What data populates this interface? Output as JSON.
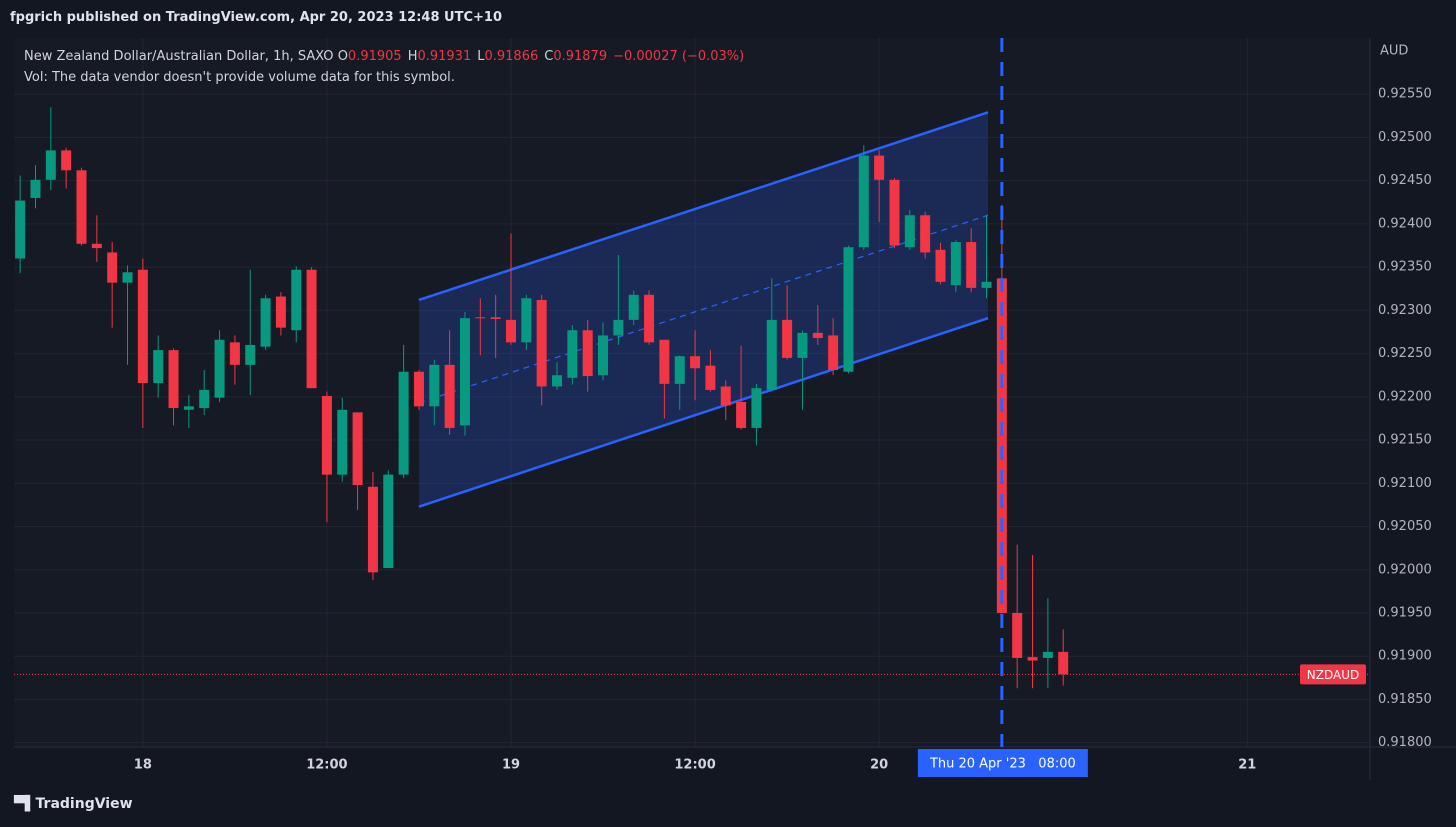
{
  "header": {
    "published": "fpgrich published on TradingView.com, Apr 20, 2023 12:48 UTC+10"
  },
  "footer": {
    "brand": "TradingView"
  },
  "chart_data": {
    "type": "candlestick",
    "symbol_info": "New Zealand Dollar/Australian Dollar, 1h, SAXO",
    "ohlc_legend": [
      {
        "label": "O",
        "value": 0.91905
      },
      {
        "label": "H",
        "value": 0.91931
      },
      {
        "label": "L",
        "value": 0.91866
      },
      {
        "label": "C",
        "value": 0.91879
      }
    ],
    "change": "−0.00027 (−0.03%)",
    "volume_note": "Vol: The data vendor doesn't provide volume data for this symbol.",
    "currency": "AUD",
    "x": [
      0,
      1,
      2,
      3,
      4,
      5,
      6,
      7,
      8,
      9,
      10,
      11,
      12,
      13,
      14,
      15,
      16,
      17,
      18,
      19,
      20,
      21,
      22,
      23,
      24,
      25,
      26,
      27,
      28,
      29,
      30,
      31,
      32,
      33,
      34,
      35,
      36,
      37,
      38,
      39,
      40,
      41,
      42,
      43,
      44,
      45,
      46,
      47,
      48,
      49,
      50,
      51,
      52,
      53,
      54,
      55,
      56,
      57,
      58,
      59,
      60,
      61,
      62,
      63,
      64,
      65,
      66,
      67,
      68
    ],
    "open": [
      0.9236,
      0.9243,
      0.92451,
      0.92485,
      0.92462,
      0.92377,
      0.92367,
      0.92332,
      0.92347,
      0.92216,
      0.92254,
      0.92185,
      0.92187,
      0.92199,
      0.92263,
      0.92237,
      0.92258,
      0.92316,
      0.92277,
      0.92347,
      0.92201,
      0.9211,
      0.92182,
      0.92096,
      0.92002,
      0.9211,
      0.92229,
      0.92189,
      0.92237,
      0.92167,
      0.92292,
      0.92292,
      0.92289,
      0.92263,
      0.92312,
      0.92212,
      0.92222,
      0.92277,
      0.92225,
      0.92271,
      0.92289,
      0.92318,
      0.92266,
      0.92215,
      0.92247,
      0.92236,
      0.92212,
      0.92194,
      0.92164,
      0.92208,
      0.92289,
      0.92245,
      0.92274,
      0.92271,
      0.92229,
      0.92373,
      0.92479,
      0.92451,
      0.92373,
      0.9241,
      0.9237,
      0.92329,
      0.92379,
      0.92326,
      0.92337,
      0.9195,
      0.91899,
      0.91898,
      0.91905
    ],
    "high": [
      0.92456,
      0.92468,
      0.92535,
      0.92488,
      0.92465,
      0.9241,
      0.92379,
      0.92352,
      0.9236,
      0.92271,
      0.92256,
      0.92202,
      0.92231,
      0.92277,
      0.92271,
      0.92347,
      0.92318,
      0.92321,
      0.92351,
      0.9235,
      0.92206,
      0.92199,
      0.92182,
      0.92113,
      0.92115,
      0.9226,
      0.92231,
      0.92243,
      0.92277,
      0.92298,
      0.92314,
      0.92318,
      0.92389,
      0.92318,
      0.92318,
      0.9224,
      0.92283,
      0.92289,
      0.92286,
      0.92364,
      0.92323,
      0.92323,
      0.92266,
      0.92248,
      0.92277,
      0.92254,
      0.92219,
      0.92259,
      0.92215,
      0.92337,
      0.92329,
      0.92277,
      0.92306,
      0.92291,
      0.92375,
      0.92491,
      0.92485,
      0.92453,
      0.92416,
      0.92414,
      0.92378,
      0.92381,
      0.92395,
      0.9241,
      0.92422,
      0.92029,
      0.92017,
      0.91967,
      0.91931
    ],
    "low": [
      0.92343,
      0.92418,
      0.92439,
      0.92441,
      0.92375,
      0.92356,
      0.9228,
      0.92237,
      0.92164,
      0.92199,
      0.92167,
      0.92164,
      0.92179,
      0.92194,
      0.92214,
      0.92202,
      0.92254,
      0.92271,
      0.92263,
      0.9221,
      0.92055,
      0.92102,
      0.92069,
      0.91988,
      0.92002,
      0.92106,
      0.92185,
      0.92167,
      0.92156,
      0.92155,
      0.92248,
      0.92245,
      0.9226,
      0.92254,
      0.9219,
      0.92208,
      0.92214,
      0.92206,
      0.92219,
      0.9226,
      0.92283,
      0.9226,
      0.92175,
      0.92185,
      0.92196,
      0.92206,
      0.92173,
      0.92162,
      0.92144,
      0.92206,
      0.92243,
      0.92185,
      0.9226,
      0.92225,
      0.92227,
      0.9237,
      0.92402,
      0.92372,
      0.9237,
      0.9236,
      0.9233,
      0.92321,
      0.92321,
      0.92314,
      0.9195,
      0.91863,
      0.91863,
      0.91863,
      0.91866
    ],
    "close": [
      0.92427,
      0.92451,
      0.92485,
      0.92462,
      0.92377,
      0.92372,
      0.92332,
      0.92344,
      0.92216,
      0.92254,
      0.92187,
      0.92189,
      0.92208,
      0.92266,
      0.92237,
      0.9226,
      0.92314,
      0.9228,
      0.92347,
      0.9221,
      0.9211,
      0.92185,
      0.92098,
      0.91997,
      0.9211,
      0.92229,
      0.92189,
      0.92237,
      0.92164,
      0.92291,
      0.92291,
      0.9229,
      0.92263,
      0.92314,
      0.92212,
      0.92225,
      0.92277,
      0.92224,
      0.92271,
      0.92289,
      0.92318,
      0.92263,
      0.92215,
      0.92247,
      0.92233,
      0.92208,
      0.9219,
      0.92164,
      0.9221,
      0.92289,
      0.92245,
      0.92274,
      0.92268,
      0.92231,
      0.92373,
      0.92479,
      0.92451,
      0.92375,
      0.9241,
      0.92367,
      0.92333,
      0.92379,
      0.92326,
      0.92333,
      0.9195,
      0.91898,
      0.91895,
      0.91905,
      0.91879
    ],
    "up_color": "#089981",
    "down_color": "#f23645",
    "xlim": [
      -0.4,
      88.0
    ],
    "ylim": [
      0.91795,
      0.92615
    ],
    "xticks": [
      {
        "value": 8,
        "label": "18"
      },
      {
        "value": 20,
        "label": "12:00"
      },
      {
        "value": 32,
        "label": "19"
      },
      {
        "value": 44,
        "label": "12:00"
      },
      {
        "value": 56,
        "label": "20"
      },
      {
        "value": 80,
        "label": "21"
      }
    ],
    "yticks": [
      {
        "value": 0.9255,
        "label": "0.92550"
      },
      {
        "value": 0.925,
        "label": "0.92500"
      },
      {
        "value": 0.9245,
        "label": "0.92450"
      },
      {
        "value": 0.924,
        "label": "0.92400"
      },
      {
        "value": 0.9235,
        "label": "0.92350"
      },
      {
        "value": 0.923,
        "label": "0.92300"
      },
      {
        "value": 0.9225,
        "label": "0.92250"
      },
      {
        "value": 0.922,
        "label": "0.92200"
      },
      {
        "value": 0.9215,
        "label": "0.92150"
      },
      {
        "value": 0.921,
        "label": "0.92100"
      },
      {
        "value": 0.9205,
        "label": "0.92050"
      },
      {
        "value": 0.92,
        "label": "0.92000"
      },
      {
        "value": 0.9195,
        "label": "0.91950"
      },
      {
        "value": 0.919,
        "label": "0.91900"
      },
      {
        "value": 0.9185,
        "label": "0.91850"
      },
      {
        "value": 0.918,
        "label": "0.91800"
      }
    ],
    "grid": true,
    "channel": {
      "x": [
        26,
        63.1
      ],
      "upper": [
        0.92312,
        0.92529
      ],
      "middle": [
        0.92193,
        0.9241
      ],
      "lower": [
        0.92073,
        0.92291
      ],
      "color": "#2962ff"
    },
    "marker": {
      "x": 64,
      "label": "Thu 20 Apr '23   08:00",
      "color": "#2962ff"
    },
    "price_tag": {
      "label": "NZDAUD"
    }
  }
}
